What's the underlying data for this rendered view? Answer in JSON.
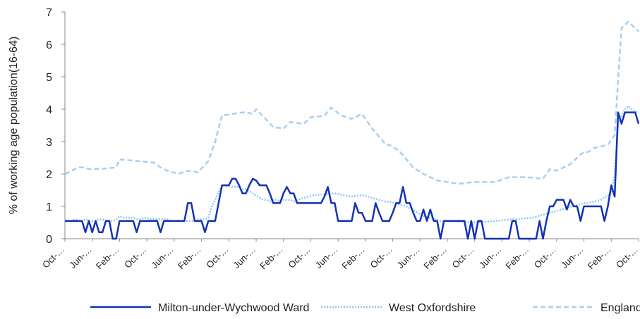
{
  "chart_data": {
    "type": "line",
    "y_label": "% of working age population(16-64)",
    "ylim": [
      0,
      7
    ],
    "yticks": [
      0,
      1,
      2,
      3,
      4,
      5,
      6,
      7
    ],
    "categories": [
      "Oct-…",
      null,
      null,
      null,
      null,
      null,
      null,
      null,
      "Jun-…",
      null,
      null,
      null,
      null,
      null,
      null,
      null,
      "Feb-…",
      null,
      null,
      null,
      null,
      null,
      null,
      null,
      "Oct-…",
      null,
      null,
      null,
      null,
      null,
      null,
      null,
      "Jun-…",
      null,
      null,
      null,
      null,
      null,
      null,
      null,
      "Feb-…",
      null,
      null,
      null,
      null,
      null,
      null,
      null,
      "Oct-…",
      null,
      null,
      null,
      null,
      null,
      null,
      null,
      "Jun-…",
      null,
      null,
      null,
      null,
      null,
      null,
      null,
      "Feb-…",
      null,
      null,
      null,
      null,
      null,
      null,
      null,
      "Oct-…",
      null,
      null,
      null,
      null,
      null,
      null,
      null,
      "Jun-…",
      null,
      null,
      null,
      null,
      null,
      null,
      null,
      "Feb-…",
      null,
      null,
      null,
      null,
      null,
      null,
      null,
      "Oct-…",
      null,
      null,
      null,
      null,
      null,
      null,
      null,
      "Jun-…",
      null,
      null,
      null,
      null,
      null,
      null,
      null,
      "Feb-…",
      null,
      null,
      null,
      null,
      null,
      null,
      null,
      "Oct-…",
      null,
      null,
      null,
      null,
      null,
      null,
      null,
      "Jun-…",
      null,
      null,
      null,
      null,
      null,
      null,
      null,
      "Feb-…",
      null,
      null,
      null,
      null,
      null,
      null,
      null,
      "Oct-…",
      null,
      null,
      null,
      null,
      null,
      null,
      null,
      "Jun-…",
      null,
      null,
      null,
      null,
      null,
      null,
      null,
      "Feb-…",
      null,
      null,
      null,
      null,
      null,
      null,
      null,
      "Oct-…"
    ],
    "series": [
      {
        "name": "Milton-under-Wychwood Ward",
        "color": "#1432b4",
        "dash": "solid",
        "values": [
          0.55,
          0.55,
          0.55,
          0.55,
          0.55,
          0.55,
          0.2,
          0.55,
          0.2,
          0.55,
          0.2,
          0.2,
          0.55,
          0.55,
          0,
          0,
          0.55,
          0.55,
          0.55,
          0.55,
          0.55,
          0.2,
          0.55,
          0.55,
          0.55,
          0.55,
          0.55,
          0.55,
          0.2,
          0.55,
          0.55,
          0.55,
          0.55,
          0.55,
          0.55,
          0.55,
          1.1,
          1.1,
          0.55,
          0.55,
          0.55,
          0.2,
          0.55,
          0.55,
          0.55,
          1.1,
          1.65,
          1.65,
          1.65,
          1.85,
          1.85,
          1.65,
          1.4,
          1.4,
          1.65,
          1.85,
          1.8,
          1.65,
          1.65,
          1.65,
          1.4,
          1.1,
          1.1,
          1.1,
          1.4,
          1.6,
          1.4,
          1.4,
          1.1,
          1.1,
          1.1,
          1.1,
          1.1,
          1.1,
          1.1,
          1.1,
          1.3,
          1.6,
          1.1,
          1.1,
          0.55,
          0.55,
          0.55,
          0.55,
          0.55,
          1.1,
          0.8,
          0.8,
          0.55,
          0.55,
          0.55,
          1.1,
          0.8,
          0.55,
          0.55,
          0.55,
          0.8,
          1.1,
          1.1,
          1.6,
          1.1,
          1.1,
          0.8,
          0.55,
          0.55,
          0.9,
          0.55,
          0.9,
          0.55,
          0.55,
          0,
          0.55,
          0.55,
          0.55,
          0.55,
          0.55,
          0.55,
          0.55,
          0,
          0.55,
          0,
          0.55,
          0.55,
          0,
          0,
          0,
          0,
          0,
          0,
          0,
          0,
          0.55,
          0.55,
          0,
          0,
          0,
          0,
          0,
          0,
          0.55,
          0,
          0.55,
          1.0,
          1.0,
          1.2,
          1.2,
          1.2,
          0.9,
          1.2,
          1.0,
          1.0,
          0.55,
          1.0,
          1.0,
          1.0,
          1.0,
          1.0,
          1.0,
          0.55,
          1.0,
          1.65,
          1.3,
          3.9,
          3.55,
          3.9,
          3.9,
          3.9,
          3.9,
          3.55
        ]
      },
      {
        "name": "West Oxfordshire",
        "color": "#8ec8f0",
        "dash": "dotted",
        "values": [
          0.55,
          0.55,
          0.55,
          0.6,
          0.55,
          0.55,
          0.6,
          0.55,
          0.55,
          0.55,
          0.6,
          0.6,
          0.55,
          0.55,
          0.55,
          0.6,
          0.7,
          0.65,
          0.65,
          0.65,
          0.65,
          0.6,
          0.6,
          0.65,
          0.65,
          0.6,
          0.6,
          0.6,
          0.6,
          0.6,
          0.6,
          0.55,
          0.55,
          0.55,
          0.55,
          0.55,
          0.55,
          0.55,
          0.55,
          0.6,
          0.6,
          0.6,
          0.65,
          1.0,
          1.2,
          1.45,
          1.65,
          1.63,
          1.62,
          1.6,
          1.6,
          1.6,
          1.53,
          1.53,
          1.47,
          1.4,
          1.33,
          1.27,
          1.2,
          1.2,
          1.15,
          1.2,
          1.2,
          1.15,
          1.2,
          1.2,
          1.2,
          1.15,
          1.2,
          1.23,
          1.26,
          1.29,
          1.32,
          1.35,
          1.35,
          1.36,
          1.37,
          1.38,
          1.39,
          1.4,
          1.38,
          1.36,
          1.34,
          1.32,
          1.3,
          1.32,
          1.33,
          1.35,
          1.32,
          1.29,
          1.26,
          1.23,
          1.2,
          1.17,
          1.14,
          1.14,
          1.11,
          1.09,
          1.06,
          1.03,
          1.0,
          0.94,
          0.88,
          0.82,
          0.76,
          0.7,
          0.67,
          0.64,
          0.61,
          0.58,
          0.55,
          0.55,
          0.54,
          0.54,
          0.53,
          0.53,
          0.53,
          0.52,
          0.52,
          0.51,
          0.51,
          0.5,
          0.51,
          0.52,
          0.53,
          0.54,
          0.55,
          0.56,
          0.57,
          0.58,
          0.59,
          0.6,
          0.6,
          0.61,
          0.62,
          0.63,
          0.64,
          0.65,
          0.68,
          0.71,
          0.74,
          0.77,
          0.8,
          0.83,
          0.86,
          0.89,
          0.92,
          0.95,
          0.98,
          1.01,
          1.04,
          1.07,
          1.1,
          1.1,
          1.13,
          1.15,
          1.18,
          1.2,
          1.27,
          1.33,
          1.4,
          2.0,
          3.5,
          3.8,
          4.0,
          4.1,
          4.0,
          3.95,
          3.9
        ]
      },
      {
        "name": "England",
        "color": "#a6d0f4",
        "dash": "dashed",
        "values": [
          2.0,
          2.05,
          2.1,
          2.15,
          2.2,
          2.2,
          2.2,
          2.15,
          2.15,
          2.15,
          2.16,
          2.16,
          2.17,
          2.18,
          2.19,
          2.2,
          2.45,
          2.44,
          2.43,
          2.42,
          2.41,
          2.4,
          2.39,
          2.38,
          2.37,
          2.36,
          2.35,
          2.28,
          2.2,
          2.15,
          2.1,
          2.05,
          2.05,
          2.0,
          2.03,
          2.07,
          2.1,
          2.08,
          2.07,
          2.05,
          2.17,
          2.28,
          2.4,
          2.7,
          3.0,
          3.4,
          3.8,
          3.82,
          3.83,
          3.85,
          3.87,
          3.88,
          3.9,
          3.9,
          3.88,
          3.85,
          4.0,
          3.89,
          3.78,
          3.67,
          3.56,
          3.45,
          3.43,
          3.42,
          3.4,
          3.5,
          3.6,
          3.59,
          3.58,
          3.56,
          3.55,
          3.65,
          3.75,
          3.77,
          3.77,
          3.78,
          3.8,
          3.92,
          4.05,
          3.97,
          3.88,
          3.8,
          3.77,
          3.73,
          3.7,
          3.75,
          3.8,
          3.85,
          3.7,
          3.55,
          3.4,
          3.28,
          3.15,
          3.03,
          2.9,
          2.9,
          2.83,
          2.77,
          2.7,
          2.58,
          2.45,
          2.33,
          2.2,
          2.13,
          2.07,
          2.0,
          1.95,
          1.9,
          1.85,
          1.8,
          1.78,
          1.77,
          1.75,
          1.73,
          1.72,
          1.7,
          1.7,
          1.71,
          1.73,
          1.74,
          1.75,
          1.75,
          1.75,
          1.75,
          1.75,
          1.75,
          1.75,
          1.79,
          1.83,
          1.86,
          1.9,
          1.9,
          1.9,
          1.9,
          1.9,
          1.9,
          1.89,
          1.88,
          1.87,
          1.86,
          1.85,
          2.0,
          2.15,
          2.13,
          2.1,
          2.15,
          2.2,
          2.25,
          2.3,
          2.4,
          2.5,
          2.6,
          2.67,
          2.67,
          2.73,
          2.8,
          2.83,
          2.85,
          2.88,
          2.9,
          3.05,
          3.2,
          4.9,
          6.5,
          6.6,
          6.7,
          6.6,
          6.5,
          6.4
        ]
      }
    ]
  }
}
